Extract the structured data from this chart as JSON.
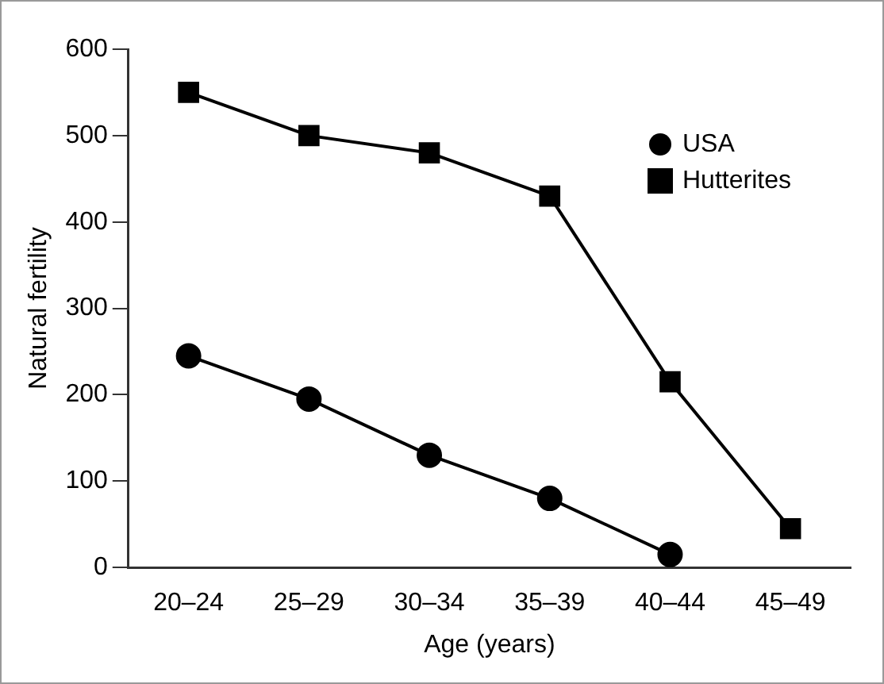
{
  "chart_data": {
    "type": "line",
    "xlabel": "Age (years)",
    "ylabel": "Natural fertility",
    "categories": [
      "20–24",
      "25–29",
      "30–34",
      "35–39",
      "40–44",
      "45–49"
    ],
    "series": [
      {
        "name": "USA",
        "color": "#000000",
        "marker": "circle",
        "values": [
          245,
          195,
          130,
          80,
          15,
          null
        ]
      },
      {
        "name": "Hutterites",
        "color": "#000000",
        "marker": "square",
        "values": [
          550,
          500,
          480,
          430,
          215,
          45
        ]
      }
    ],
    "ylim": [
      0,
      600
    ],
    "yticks": [
      0,
      100,
      200,
      300,
      400,
      500,
      600
    ],
    "grid": false,
    "legend": "top right",
    "line_style": "solid"
  }
}
